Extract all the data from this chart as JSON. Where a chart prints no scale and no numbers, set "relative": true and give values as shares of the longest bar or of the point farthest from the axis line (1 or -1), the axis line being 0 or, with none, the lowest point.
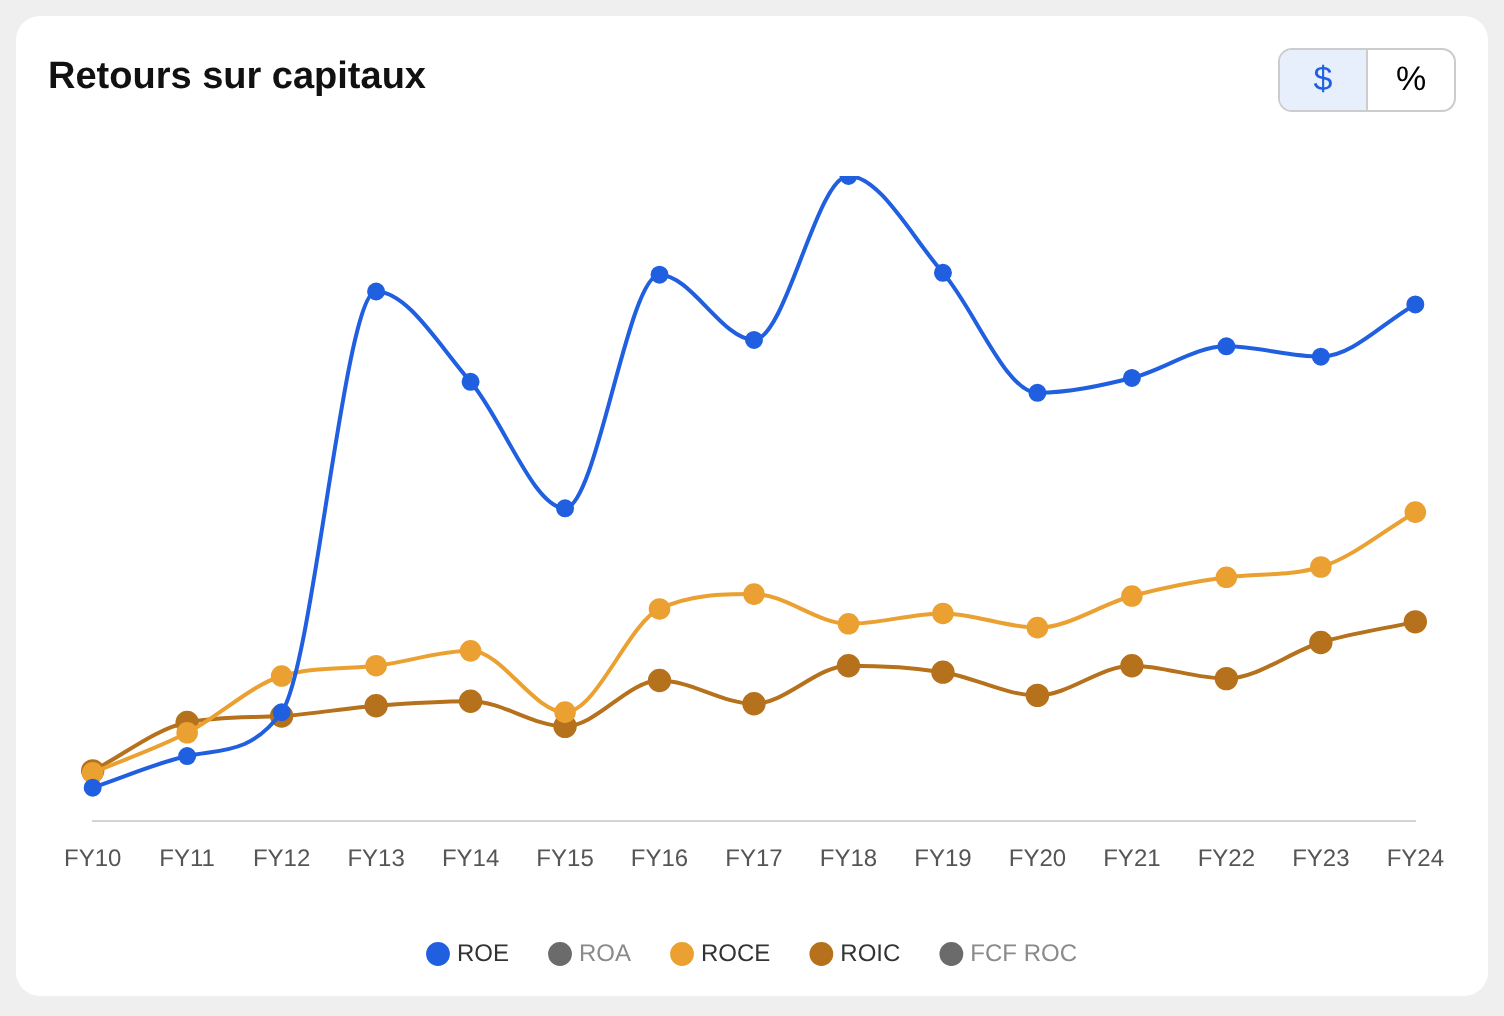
{
  "chart_data": {
    "type": "line",
    "title": "Retours sur capitaux",
    "relative": true,
    "legend": "bottom",
    "marker": "circle",
    "grid": false,
    "annotations": [
      "$",
      "%"
    ],
    "categories": [
      "FY10",
      "FY11",
      "FY12",
      "FY13",
      "FY14",
      "FY15",
      "FY16",
      "FY17",
      "FY18",
      "FY19",
      "FY20",
      "FY21",
      "FY22",
      "FY23",
      "FY24"
    ],
    "series": [
      {
        "name": "ROE",
        "color": "#1f5fe0",
        "values": [
          0.052,
          0.101,
          0.169,
          0.821,
          0.681,
          0.485,
          0.847,
          0.746,
          1,
          0.85,
          0.664,
          0.687,
          0.736,
          0.72,
          0.801
        ]
      },
      {
        "name": "ROA",
        "color": "#6b6b6b",
        "values": [
          null,
          null,
          null,
          null,
          null,
          null,
          null,
          null,
          null,
          null,
          null,
          null,
          null,
          null,
          null
        ]
      },
      {
        "name": "ROCE",
        "color": "#eba032",
        "values": [
          0.075,
          0.137,
          0.225,
          0.241,
          0.264,
          0.169,
          0.329,
          0.352,
          0.306,
          0.322,
          0.3,
          0.349,
          0.378,
          0.394,
          0.479
        ]
      },
      {
        "name": "ROIC",
        "color": "#b5711b",
        "values": [
          0.078,
          0.153,
          0.163,
          0.179,
          0.186,
          0.147,
          0.218,
          0.182,
          0.241,
          0.231,
          0.195,
          0.241,
          0.221,
          0.277,
          0.309
        ]
      },
      {
        "name": "FCF ROC",
        "color": "#6b6b6b",
        "values": [
          null,
          null,
          null,
          null,
          null,
          null,
          null,
          null,
          null,
          null,
          null,
          null,
          null,
          null,
          null
        ]
      }
    ]
  }
}
